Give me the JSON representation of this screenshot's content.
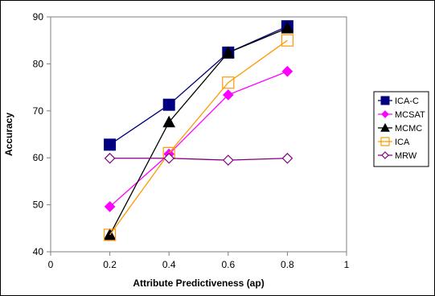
{
  "chart_data": {
    "type": "line",
    "title": "",
    "xlabel": "Attribute Predictiveness (ap)",
    "ylabel": "Accuracy",
    "xlim": [
      0,
      1
    ],
    "ylim": [
      40,
      90
    ],
    "x_ticks": [
      "0",
      "0.2",
      "0.4",
      "0.6",
      "0.8",
      "1"
    ],
    "y_ticks": [
      "40",
      "50",
      "60",
      "70",
      "80",
      "90"
    ],
    "x": [
      0.2,
      0.4,
      0.6,
      0.8
    ],
    "grid": false,
    "legend_position": "right",
    "series": [
      {
        "name": "ICA-C",
        "values": [
          62.8,
          71.3,
          82.4,
          88.0
        ],
        "color": "#000080",
        "marker": "square-filled"
      },
      {
        "name": "MCSAT",
        "values": [
          49.6,
          60.8,
          73.4,
          78.4
        ],
        "color": "#ff00ff",
        "marker": "diamond-filled"
      },
      {
        "name": "MCMC",
        "values": [
          43.6,
          67.6,
          82.4,
          87.6
        ],
        "color": "#000000",
        "marker": "triangle-filled"
      },
      {
        "name": "ICA",
        "values": [
          43.6,
          61.0,
          76.0,
          85.0
        ],
        "color": "#ff9900",
        "marker": "square-open"
      },
      {
        "name": "MRW",
        "values": [
          59.9,
          59.9,
          59.5,
          59.9
        ],
        "color": "#800080",
        "marker": "diamond-open"
      }
    ]
  }
}
